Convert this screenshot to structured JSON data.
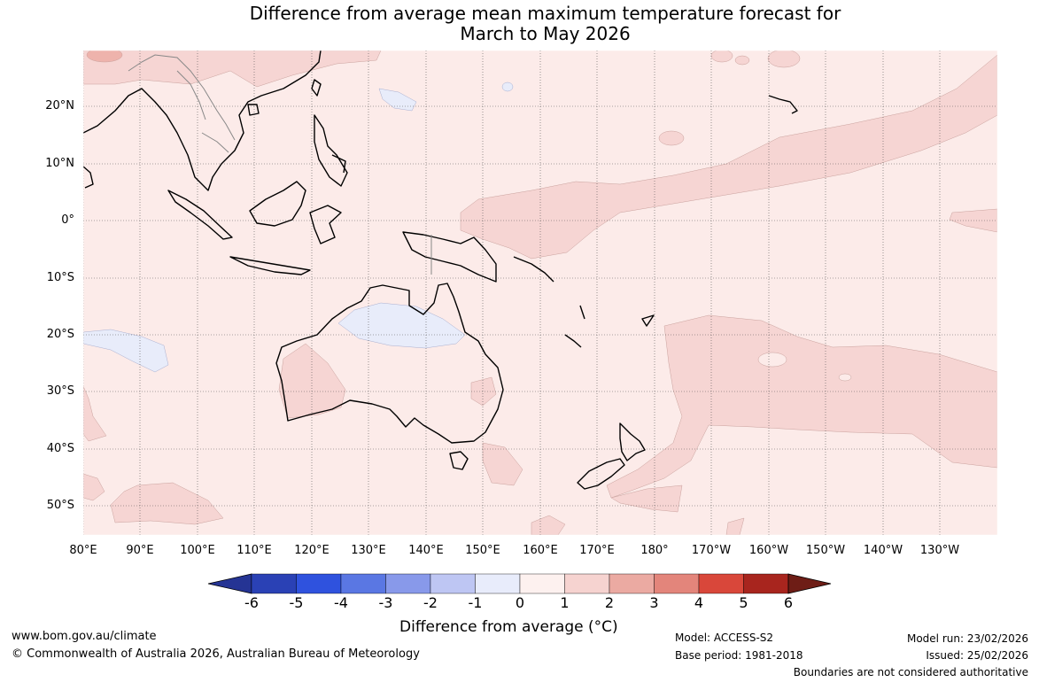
{
  "title": {
    "line1": "Difference from average mean maximum temperature forecast for",
    "line2": "March to May 2026"
  },
  "map": {
    "lat_ticks": [
      "20°N",
      "10°N",
      "0°",
      "10°S",
      "20°S",
      "30°S",
      "40°S",
      "50°S"
    ],
    "lon_ticks": [
      "80°E",
      "90°E",
      "100°E",
      "110°E",
      "120°E",
      "130°E",
      "140°E",
      "150°E",
      "160°E",
      "170°E",
      "180°",
      "170°W",
      "160°W",
      "150°W",
      "140°W",
      "130°W"
    ],
    "colors": {
      "bg": "#fcebe9",
      "warm1": "#f6d5d3",
      "warm2": "#eeb3ac",
      "cool1": "#e8ecfa",
      "grid": "#555555",
      "coast": "#000000"
    }
  },
  "colorbar": {
    "ticks": [
      "-6",
      "-5",
      "-4",
      "-3",
      "-2",
      "-1",
      "0",
      "1",
      "2",
      "3",
      "4",
      "5",
      "6"
    ],
    "label": "Difference from average (°C)",
    "colors": [
      "#253494",
      "#2a41b5",
      "#2f52de",
      "#5a77e3",
      "#8899ea",
      "#bec6f3",
      "#e8ecfb",
      "#fdf1ef",
      "#f6d3d0",
      "#ebaaa2",
      "#e3857b",
      "#d9473a",
      "#a8251e",
      "#6e1d16"
    ]
  },
  "footer": {
    "website": "www.bom.gov.au/climate",
    "copyright": "© Commonwealth of Australia 2026, Australian Bureau of Meteorology",
    "model": "Model: ACCESS-S2",
    "base_period": "Base period: 1981-2018",
    "model_run": "Model run: 23/02/2026",
    "issued": "Issued: 25/02/2026",
    "disclaimer": "Boundaries are not considered authoritative"
  }
}
